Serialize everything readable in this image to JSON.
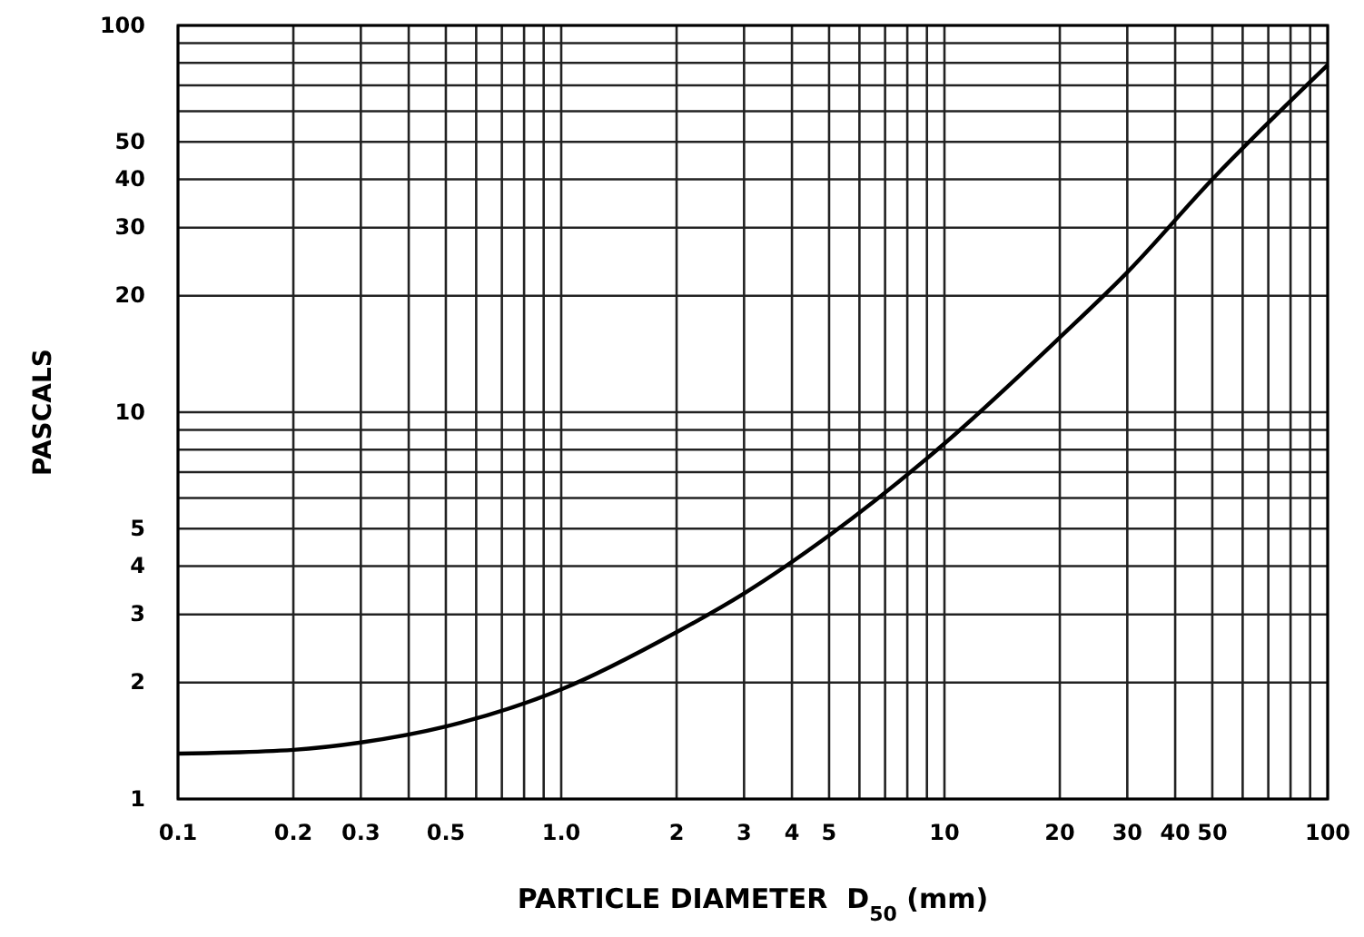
{
  "chart_data": {
    "type": "line",
    "xlabel": "PARTICLE DIAMETER  D$_{50}$ (mm)",
    "ylabel": "PASCALS",
    "log": "xy",
    "grid": true,
    "marker": "none",
    "line_style": "solid",
    "x": [
      0.1,
      0.2,
      0.3,
      0.5,
      1.0,
      2,
      3,
      5,
      10,
      20,
      30,
      50,
      100
    ],
    "series": [
      {
        "color": "#000000",
        "values": [
          1.31,
          1.34,
          1.4,
          1.54,
          1.92,
          2.7,
          3.4,
          4.8,
          8.3,
          15.6,
          23,
          40,
          79
        ]
      }
    ],
    "xlim": [
      0.1,
      100
    ],
    "ylim": [
      1,
      100
    ],
    "xticks": [
      {
        "value": 0.1,
        "label": "0.1"
      },
      0.2,
      0.3,
      {
        "value": 0.4,
        "label": null
      },
      0.5,
      {
        "value": 0.6,
        "label": null
      },
      {
        "value": 0.7,
        "label": null
      },
      {
        "value": 0.8,
        "label": null
      },
      {
        "value": 0.9,
        "label": null
      },
      {
        "value": 1,
        "label": "1.0"
      },
      2,
      3,
      4,
      5,
      {
        "value": 6,
        "label": null
      },
      {
        "value": 7,
        "label": null
      },
      {
        "value": 8,
        "label": null
      },
      {
        "value": 9,
        "label": null
      },
      10,
      20,
      30,
      40,
      50,
      {
        "value": 60,
        "label": null
      },
      {
        "value": 70,
        "label": null
      },
      {
        "value": 80,
        "label": null
      },
      {
        "value": 90,
        "label": null
      },
      100
    ],
    "yticks": [
      1,
      2,
      3,
      4,
      5,
      {
        "value": 6,
        "label": null
      },
      {
        "value": 7,
        "label": null
      },
      {
        "value": 8,
        "label": null
      },
      {
        "value": 9,
        "label": null
      },
      10,
      20,
      30,
      40,
      50,
      {
        "value": 60,
        "label": null
      },
      {
        "value": 70,
        "label": null
      },
      {
        "value": 80,
        "label": null
      },
      {
        "value": 90,
        "label": null
      },
      100
    ]
  }
}
